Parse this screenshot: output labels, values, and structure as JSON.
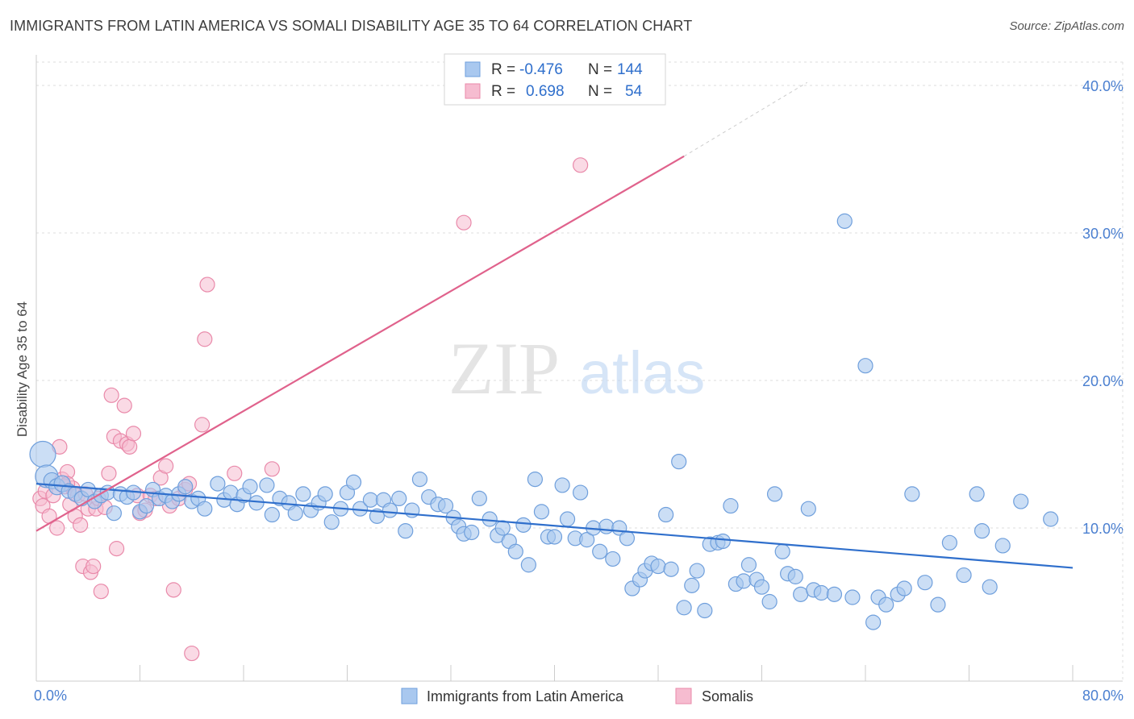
{
  "chart_data": {
    "type": "scatter",
    "title": "IMMIGRANTS FROM LATIN AMERICA VS SOMALI DISABILITY AGE 35 TO 64 CORRELATION CHART",
    "source": "Source: ZipAtlas.com",
    "xlabel": "",
    "ylabel": "Disability Age 35 to 64",
    "xlim": [
      0,
      80
    ],
    "ylim": [
      0,
      41
    ],
    "x_tick_labels": [
      "0.0%",
      "80.0%"
    ],
    "y_ticks": [
      10,
      20,
      30,
      40
    ],
    "y_tick_labels": [
      "10.0%",
      "20.0%",
      "30.0%",
      "40.0%"
    ],
    "watermark": {
      "part1": "ZIP",
      "part2": "atlas"
    },
    "colors": {
      "blue_fill": "#a9c8ef",
      "blue_stroke": "#6f9fdc",
      "blue_line": "#2f6fcc",
      "pink_fill": "#f6bcd0",
      "pink_stroke": "#e98aaa",
      "pink_line": "#e0628c",
      "value_text": "#2f6fcc",
      "axis_text": "#4a7fd0",
      "grid": "#dddddd"
    },
    "stats": [
      {
        "r_label": "R =",
        "r": "-0.476",
        "n_label": "N =",
        "n": "144"
      },
      {
        "r_label": "R =",
        "r": "0.698",
        "n_label": "N =",
        "n": "54"
      }
    ],
    "legend": [
      "Immigrants from Latin America",
      "Somalis"
    ],
    "series": [
      {
        "name": "Immigrants from Latin America",
        "trend": {
          "x": [
            0,
            80
          ],
          "y": [
            13.0,
            7.3
          ]
        },
        "points": [
          [
            0.5,
            15.0,
            16
          ],
          [
            0.8,
            13.5,
            14
          ],
          [
            1.2,
            13.2,
            10
          ],
          [
            1.6,
            12.8,
            10
          ],
          [
            2.0,
            13.0,
            10
          ],
          [
            2.5,
            12.5,
            9
          ],
          [
            3.0,
            12.3,
            9
          ],
          [
            3.5,
            12.0,
            9
          ],
          [
            4.0,
            12.6,
            9
          ],
          [
            4.5,
            11.8,
            9
          ],
          [
            5.0,
            12.2,
            9
          ],
          [
            5.5,
            12.4,
            9
          ],
          [
            6.0,
            11.0,
            9
          ],
          [
            6.5,
            12.3,
            9
          ],
          [
            7.0,
            12.1,
            9
          ],
          [
            7.5,
            12.4,
            9
          ],
          [
            8.0,
            11.1,
            9
          ],
          [
            8.5,
            11.5,
            9
          ],
          [
            9.0,
            12.6,
            9
          ],
          [
            9.5,
            12.0,
            9
          ],
          [
            10.0,
            12.2,
            9
          ],
          [
            10.5,
            11.8,
            9
          ],
          [
            11.0,
            12.3,
            9
          ],
          [
            11.5,
            12.8,
            9
          ],
          [
            12.0,
            11.8,
            9
          ],
          [
            12.5,
            12.0,
            9
          ],
          [
            13.0,
            11.3,
            9
          ],
          [
            14.0,
            13.0,
            9
          ],
          [
            14.5,
            11.9,
            9
          ],
          [
            15.0,
            12.4,
            9
          ],
          [
            15.5,
            11.6,
            9
          ],
          [
            16.0,
            12.2,
            9
          ],
          [
            16.5,
            12.8,
            9
          ],
          [
            17.0,
            11.7,
            9
          ],
          [
            17.8,
            12.9,
            9
          ],
          [
            18.2,
            10.9,
            9
          ],
          [
            18.8,
            12.0,
            9
          ],
          [
            19.5,
            11.7,
            9
          ],
          [
            20.0,
            11.0,
            9
          ],
          [
            20.6,
            12.3,
            9
          ],
          [
            21.2,
            11.2,
            9
          ],
          [
            21.8,
            11.7,
            9
          ],
          [
            22.3,
            12.3,
            9
          ],
          [
            22.8,
            10.4,
            9
          ],
          [
            23.5,
            11.3,
            9
          ],
          [
            24.0,
            12.4,
            9
          ],
          [
            24.5,
            13.1,
            9
          ],
          [
            25.0,
            11.3,
            9
          ],
          [
            25.8,
            11.9,
            9
          ],
          [
            26.3,
            10.8,
            9
          ],
          [
            26.8,
            11.9,
            9
          ],
          [
            27.3,
            11.2,
            9
          ],
          [
            28.0,
            12.0,
            9
          ],
          [
            28.5,
            9.8,
            9
          ],
          [
            29.0,
            11.2,
            9
          ],
          [
            29.6,
            13.3,
            9
          ],
          [
            30.3,
            12.1,
            9
          ],
          [
            31.0,
            11.6,
            9
          ],
          [
            31.6,
            11.5,
            9
          ],
          [
            32.2,
            10.7,
            9
          ],
          [
            32.6,
            10.1,
            9
          ],
          [
            33.0,
            9.6,
            9
          ],
          [
            33.6,
            9.7,
            9
          ],
          [
            34.2,
            12.0,
            9
          ],
          [
            35.0,
            10.6,
            9
          ],
          [
            35.6,
            9.5,
            9
          ],
          [
            36.0,
            10.0,
            9
          ],
          [
            36.5,
            9.1,
            9
          ],
          [
            37.0,
            8.4,
            9
          ],
          [
            37.6,
            10.2,
            9
          ],
          [
            38.0,
            7.5,
            9
          ],
          [
            38.5,
            13.3,
            9
          ],
          [
            39.0,
            11.1,
            9
          ],
          [
            39.5,
            9.4,
            9
          ],
          [
            40.0,
            9.4,
            9
          ],
          [
            40.6,
            12.9,
            9
          ],
          [
            41.0,
            10.6,
            9
          ],
          [
            41.6,
            9.3,
            9
          ],
          [
            42.0,
            12.4,
            9
          ],
          [
            42.5,
            9.2,
            9
          ],
          [
            43.0,
            10.0,
            9
          ],
          [
            43.5,
            8.4,
            9
          ],
          [
            44.0,
            10.1,
            9
          ],
          [
            44.5,
            7.9,
            9
          ],
          [
            45.0,
            10.0,
            9
          ],
          [
            45.6,
            9.3,
            9
          ],
          [
            46.0,
            5.9,
            9
          ],
          [
            46.6,
            6.5,
            9
          ],
          [
            47.0,
            7.1,
            9
          ],
          [
            47.5,
            7.6,
            9
          ],
          [
            48.0,
            7.4,
            9
          ],
          [
            48.6,
            10.9,
            9
          ],
          [
            49.0,
            7.2,
            9
          ],
          [
            49.6,
            14.5,
            9
          ],
          [
            50.0,
            4.6,
            9
          ],
          [
            50.6,
            6.1,
            9
          ],
          [
            51.0,
            7.1,
            9
          ],
          [
            51.6,
            4.4,
            9
          ],
          [
            52.0,
            8.9,
            9
          ],
          [
            52.6,
            9.0,
            9
          ],
          [
            53.0,
            9.1,
            9
          ],
          [
            53.6,
            11.5,
            9
          ],
          [
            54.0,
            6.2,
            9
          ],
          [
            54.6,
            6.4,
            9
          ],
          [
            55.0,
            7.5,
            9
          ],
          [
            55.6,
            6.5,
            9
          ],
          [
            56.0,
            6.0,
            9
          ],
          [
            56.6,
            5.0,
            9
          ],
          [
            57.0,
            12.3,
            9
          ],
          [
            57.6,
            8.4,
            9
          ],
          [
            58.0,
            6.9,
            9
          ],
          [
            58.6,
            6.7,
            9
          ],
          [
            59.0,
            5.5,
            9
          ],
          [
            59.6,
            11.3,
            9
          ],
          [
            60.0,
            5.8,
            9
          ],
          [
            60.6,
            5.6,
            9
          ],
          [
            61.6,
            5.5,
            9
          ],
          [
            62.4,
            30.8,
            9
          ],
          [
            63.0,
            5.3,
            9
          ],
          [
            64.0,
            21.0,
            9
          ],
          [
            64.6,
            3.6,
            9
          ],
          [
            65.0,
            5.3,
            9
          ],
          [
            65.6,
            4.8,
            9
          ],
          [
            66.5,
            5.5,
            9
          ],
          [
            67.0,
            5.9,
            9
          ],
          [
            67.6,
            12.3,
            9
          ],
          [
            68.6,
            6.3,
            9
          ],
          [
            69.6,
            4.8,
            9
          ],
          [
            70.5,
            9.0,
            9
          ],
          [
            71.6,
            6.8,
            9
          ],
          [
            72.6,
            12.3,
            9
          ],
          [
            73.0,
            9.8,
            9
          ],
          [
            73.6,
            6.0,
            9
          ],
          [
            74.6,
            8.8,
            9
          ],
          [
            76.0,
            11.8,
            9
          ],
          [
            78.3,
            10.6,
            9
          ]
        ]
      },
      {
        "name": "Somalis",
        "trend": {
          "x": [
            0,
            50
          ],
          "y": [
            9.8,
            35.2
          ]
        },
        "trend_dashed": {
          "x": [
            50,
            59.5
          ],
          "y": [
            35.2,
            40.2
          ]
        },
        "points": [
          [
            0.3,
            12.0,
            9
          ],
          [
            0.5,
            11.5,
            9
          ],
          [
            0.7,
            12.5,
            9
          ],
          [
            1.0,
            10.8,
            9
          ],
          [
            1.3,
            12.2,
            9
          ],
          [
            1.6,
            10.0,
            9
          ],
          [
            1.8,
            15.5,
            9
          ],
          [
            2.0,
            13.3,
            9
          ],
          [
            2.2,
            12.8,
            9
          ],
          [
            2.4,
            13.8,
            9
          ],
          [
            2.6,
            11.6,
            9
          ],
          [
            2.8,
            12.7,
            9
          ],
          [
            3.0,
            10.8,
            9
          ],
          [
            3.2,
            12.2,
            9
          ],
          [
            3.4,
            10.2,
            9
          ],
          [
            3.6,
            7.4,
            9
          ],
          [
            3.8,
            12.3,
            9
          ],
          [
            4.0,
            11.3,
            9
          ],
          [
            4.2,
            7.0,
            9
          ],
          [
            4.4,
            7.4,
            9
          ],
          [
            4.6,
            11.3,
            9
          ],
          [
            4.8,
            12.0,
            9
          ],
          [
            5.0,
            5.7,
            9
          ],
          [
            5.3,
            11.4,
            9
          ],
          [
            5.6,
            13.7,
            9
          ],
          [
            5.8,
            19.0,
            9
          ],
          [
            6.0,
            16.2,
            9
          ],
          [
            6.2,
            8.6,
            9
          ],
          [
            6.5,
            15.9,
            9
          ],
          [
            6.8,
            18.3,
            9
          ],
          [
            7.0,
            15.7,
            9
          ],
          [
            7.2,
            15.5,
            9
          ],
          [
            7.5,
            16.4,
            9
          ],
          [
            7.8,
            12.2,
            9
          ],
          [
            8.0,
            11.0,
            9
          ],
          [
            8.4,
            11.2,
            9
          ],
          [
            8.8,
            12.2,
            9
          ],
          [
            9.2,
            12.0,
            9
          ],
          [
            9.6,
            13.4,
            9
          ],
          [
            10.0,
            14.2,
            9
          ],
          [
            10.3,
            11.5,
            9
          ],
          [
            10.6,
            5.8,
            9
          ],
          [
            11.0,
            12.0,
            9
          ],
          [
            11.5,
            12.6,
            9
          ],
          [
            11.8,
            13.0,
            9
          ],
          [
            12.0,
            1.5,
            9
          ],
          [
            12.8,
            17.0,
            9
          ],
          [
            13.0,
            22.8,
            9
          ],
          [
            13.2,
            26.5,
            9
          ],
          [
            15.3,
            13.7,
            9
          ],
          [
            18.2,
            14.0,
            9
          ],
          [
            33.0,
            30.7,
            9
          ],
          [
            42.0,
            34.6,
            9
          ],
          [
            2.4,
            13.0,
            9
          ]
        ]
      }
    ]
  }
}
